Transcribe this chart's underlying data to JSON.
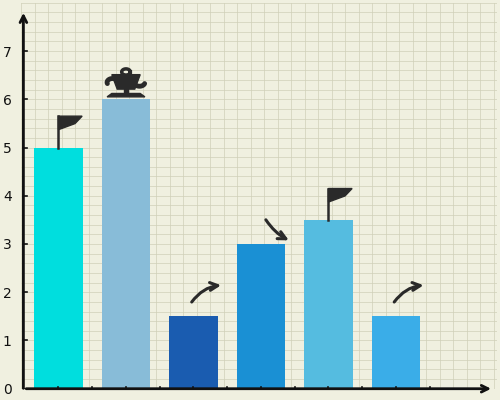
{
  "background_color": "#f0f0e0",
  "grid_color": "#d0d0b8",
  "bar_values": [
    5.0,
    6.0,
    1.5,
    3.0,
    3.5,
    1.5
  ],
  "bar_colors": [
    "#00dede",
    "#88bcd8",
    "#1a5cb0",
    "#1a90d4",
    "#55bce0",
    "#3aade8"
  ],
  "bar_width": 0.72,
  "ylim": [
    0,
    8.0
  ],
  "yticks": [
    0,
    1,
    2,
    3,
    4,
    5,
    6,
    7
  ],
  "axis_color": "#111111",
  "icon_color": "#2a2a2a",
  "figsize": [
    5.0,
    4.0
  ],
  "dpi": 100,
  "xlim": [
    -0.55,
    6.5
  ]
}
